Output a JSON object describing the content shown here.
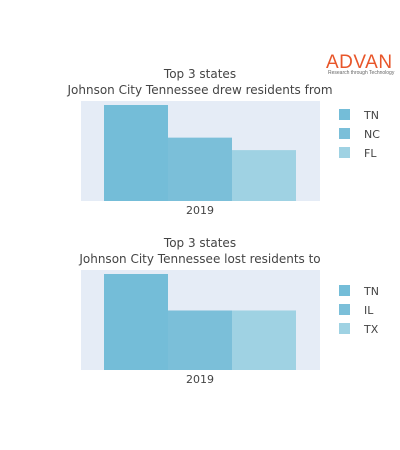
{
  "logo": {
    "name": "ADVAN",
    "tagline": "Research through Technology"
  },
  "chart_data": [
    {
      "type": "bar",
      "title_line1": "Top 3 states",
      "title_line2": "Johnson City Tennessee drew residents from",
      "categories": [
        "2019"
      ],
      "series": [
        {
          "name": "TN",
          "values": [
            100
          ],
          "color": "#74bdd8"
        },
        {
          "name": "NC",
          "values": [
            66
          ],
          "color": "#7bbfd9"
        },
        {
          "name": "FL",
          "values": [
            53
          ],
          "color": "#9fd2e3"
        }
      ],
      "ylim": [
        0,
        100
      ]
    },
    {
      "type": "bar",
      "title_line1": "Top 3 states",
      "title_line2": "Johnson City Tennessee lost residents to",
      "categories": [
        "2019"
      ],
      "series": [
        {
          "name": "TN",
          "values": [
            100
          ],
          "color": "#74bdd8"
        },
        {
          "name": "IL",
          "values": [
            62
          ],
          "color": "#7bbfd9"
        },
        {
          "name": "TX",
          "values": [
            62
          ],
          "color": "#9fd2e3"
        }
      ],
      "ylim": [
        0,
        100
      ]
    }
  ]
}
